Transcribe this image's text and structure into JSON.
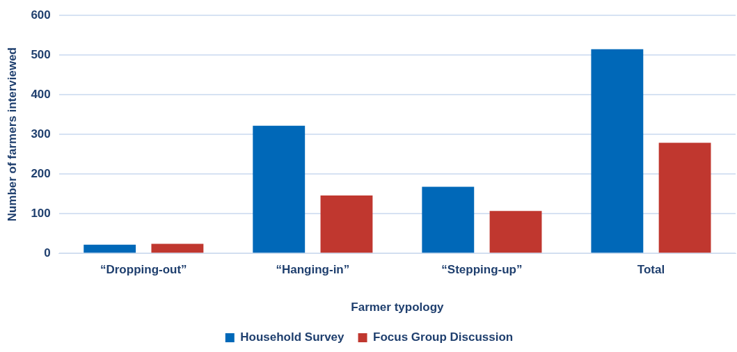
{
  "chart_data": {
    "type": "bar",
    "xlabel": "Farmer typology",
    "ylabel": "Number of farmers interviewed",
    "categories": [
      "“Dropping-out”",
      "“Hanging-in”",
      "“Stepping-up”",
      "Total"
    ],
    "series": [
      {
        "name": "Household Survey",
        "color": "#0068b8",
        "values": [
          22,
          322,
          168,
          515
        ]
      },
      {
        "name": "Focus Group Discussion",
        "color": "#c0372f",
        "values": [
          24,
          146,
          107,
          279
        ]
      }
    ],
    "ylim": [
      0,
      600
    ],
    "yticks": [
      0,
      100,
      200,
      300,
      400,
      500,
      600
    ],
    "grid": "y",
    "legend": "bottom"
  }
}
